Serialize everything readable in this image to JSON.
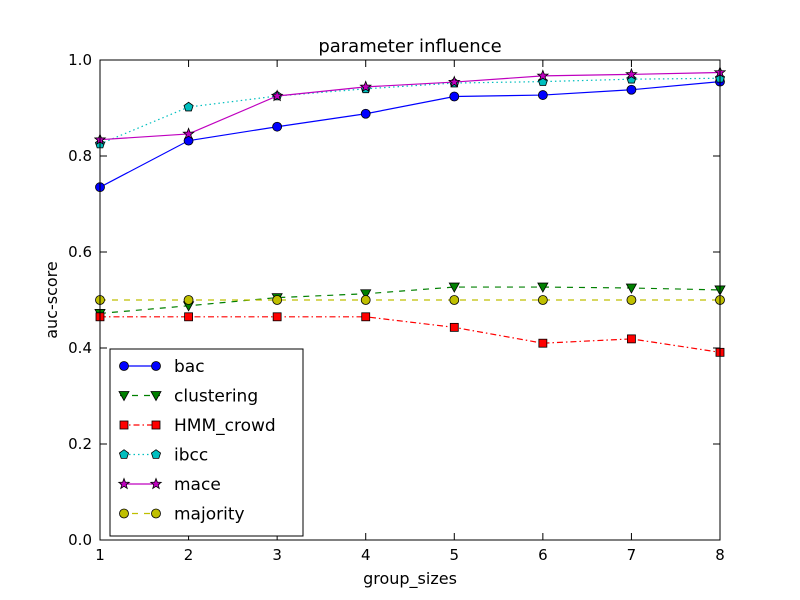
{
  "chart_data": {
    "type": "line",
    "title": "parameter influence",
    "xlabel": "group_sizes",
    "ylabel": "auc-score",
    "xlim": [
      1,
      8
    ],
    "ylim": [
      0.0,
      1.0
    ],
    "x_ticks": [
      "1",
      "2",
      "3",
      "4",
      "5",
      "6",
      "7",
      "8"
    ],
    "y_ticks": [
      "0.0",
      "0.2",
      "0.4",
      "0.6",
      "0.8",
      "1.0"
    ],
    "x": [
      1,
      2,
      3,
      4,
      5,
      6,
      7,
      8
    ],
    "grid": false,
    "legend_position": "lower-left",
    "series": [
      {
        "name": "bac",
        "color": "#0000ff",
        "marker": "circle",
        "linestyle": "solid",
        "values": [
          0.735,
          0.832,
          0.861,
          0.888,
          0.924,
          0.927,
          0.938,
          0.955
        ]
      },
      {
        "name": "clustering",
        "color": "#008000",
        "marker": "triangle-down",
        "linestyle": "dashed",
        "values": [
          0.472,
          0.488,
          0.505,
          0.513,
          0.527,
          0.527,
          0.525,
          0.521
        ]
      },
      {
        "name": "HMM_crowd",
        "color": "#ff0000",
        "marker": "square",
        "linestyle": "dashdot",
        "values": [
          0.465,
          0.465,
          0.465,
          0.465,
          0.443,
          0.41,
          0.419,
          0.391
        ]
      },
      {
        "name": "ibcc",
        "color": "#00bfbf",
        "marker": "pentagon",
        "linestyle": "dotted",
        "values": [
          0.825,
          0.902,
          0.925,
          0.94,
          0.952,
          0.955,
          0.96,
          0.962
        ]
      },
      {
        "name": "mace",
        "color": "#bf00bf",
        "marker": "star",
        "linestyle": "solid",
        "values": [
          0.834,
          0.846,
          0.925,
          0.944,
          0.954,
          0.967,
          0.97,
          0.974
        ]
      },
      {
        "name": "majority",
        "color": "#bfbf00",
        "marker": "circle",
        "linestyle": "dashed",
        "values": [
          0.5,
          0.5,
          0.5,
          0.5,
          0.5,
          0.5,
          0.5,
          0.5
        ]
      }
    ]
  }
}
